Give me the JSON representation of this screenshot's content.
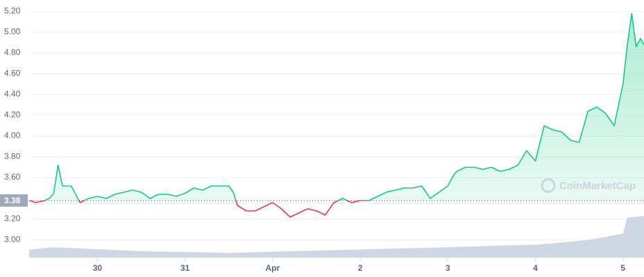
{
  "chart_data": {
    "type": "line",
    "x": [
      -0.78,
      -0.7,
      -0.6,
      -0.55,
      -0.5,
      -0.45,
      -0.4,
      -0.3,
      -0.2,
      -0.1,
      0,
      0.1,
      0.2,
      0.3,
      0.4,
      0.5,
      0.6,
      0.7,
      0.8,
      0.9,
      1.0,
      1.1,
      1.2,
      1.3,
      1.4,
      1.5,
      1.55,
      1.6,
      1.7,
      1.8,
      1.9,
      2.0,
      2.1,
      2.2,
      2.3,
      2.4,
      2.5,
      2.6,
      2.7,
      2.8,
      2.9,
      3.0,
      3.1,
      3.2,
      3.3,
      3.4,
      3.5,
      3.6,
      3.7,
      3.8,
      3.9,
      4.0,
      4.05,
      4.1,
      4.2,
      4.3,
      4.4,
      4.5,
      4.6,
      4.7,
      4.8,
      4.9,
      5.0,
      5.1,
      5.2,
      5.3,
      5.4,
      5.5,
      5.6,
      5.7,
      5.8,
      5.9,
      6.0,
      6.05,
      6.1,
      6.15,
      6.2,
      6.24
    ],
    "values": [
      3.38,
      3.36,
      3.38,
      3.4,
      3.45,
      3.72,
      3.52,
      3.52,
      3.36,
      3.4,
      3.42,
      3.4,
      3.44,
      3.46,
      3.48,
      3.46,
      3.4,
      3.44,
      3.44,
      3.42,
      3.45,
      3.5,
      3.48,
      3.52,
      3.52,
      3.52,
      3.46,
      3.33,
      3.28,
      3.28,
      3.32,
      3.36,
      3.3,
      3.22,
      3.26,
      3.3,
      3.28,
      3.24,
      3.36,
      3.4,
      3.36,
      3.38,
      3.38,
      3.42,
      3.46,
      3.48,
      3.5,
      3.5,
      3.52,
      3.4,
      3.46,
      3.52,
      3.6,
      3.66,
      3.7,
      3.7,
      3.68,
      3.7,
      3.66,
      3.68,
      3.72,
      3.86,
      3.76,
      4.1,
      4.06,
      4.04,
      3.96,
      3.94,
      4.24,
      4.28,
      4.22,
      4.1,
      4.5,
      4.88,
      5.18,
      4.86,
      4.94,
      4.88
    ],
    "colors": {
      "above": "#16c784",
      "below": "#ea3943"
    },
    "baseline": {
      "value": 3.38,
      "label": "3.38"
    },
    "volume": {
      "x": [
        -0.78,
        -0.5,
        0.5,
        1.5,
        4.0,
        4.9,
        5.0,
        5.6,
        6.0,
        6.05,
        6.24
      ],
      "values": [
        10,
        13,
        8,
        6,
        13,
        16,
        16,
        22,
        30,
        50,
        52
      ],
      "color": "#cfd6e4"
    },
    "xlim": [
      -0.78,
      6.24
    ],
    "ylim": [
      2.83,
      5.31
    ],
    "xticks": [
      {
        "value": 0,
        "label": "30"
      },
      {
        "value": 1,
        "label": "31"
      },
      {
        "value": 2,
        "label": "Apr"
      },
      {
        "value": 3,
        "label": "2"
      },
      {
        "value": 4,
        "label": "3"
      },
      {
        "value": 5,
        "label": "4"
      },
      {
        "value": 6,
        "label": "5"
      }
    ],
    "yticks": [
      {
        "value": 3,
        "label": "3.00"
      },
      {
        "value": 3.2,
        "label": "3.20"
      },
      {
        "value": 3.4,
        "label": "3.40"
      },
      {
        "value": 3.6,
        "label": "3.60"
      },
      {
        "value": 3.8,
        "label": "3.80"
      },
      {
        "value": 4,
        "label": "4.00"
      },
      {
        "value": 4.2,
        "label": "4.20"
      },
      {
        "value": 4.4,
        "label": "4.40"
      },
      {
        "value": 4.6,
        "label": "4.60"
      },
      {
        "value": 4.8,
        "label": "4.80"
      },
      {
        "value": 5,
        "label": "5.00"
      },
      {
        "value": 5.2,
        "label": "5.20"
      }
    ],
    "watermark": "CoinMarketCap"
  }
}
